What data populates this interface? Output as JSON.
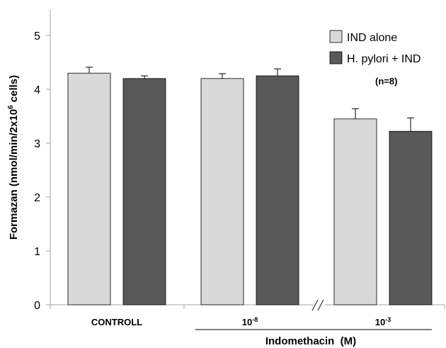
{
  "chart_data": {
    "type": "bar",
    "categories": [
      "CONTROLL",
      "10-8",
      "10-3"
    ],
    "category_labels": [
      {
        "base": "CONTROLL",
        "sup": ""
      },
      {
        "base": "10",
        "sup": "-8"
      },
      {
        "base": "10",
        "sup": "-3"
      }
    ],
    "series": [
      {
        "name": "IND alone",
        "color": "#d9d9d9",
        "values": [
          4.3,
          4.2,
          3.45
        ],
        "errors": [
          0.11,
          0.09,
          0.19
        ]
      },
      {
        "name": "H. pylori + IND",
        "color": "#595959",
        "values": [
          4.2,
          4.25,
          3.22
        ],
        "errors": [
          0.05,
          0.13,
          0.25
        ]
      }
    ],
    "ylabel": {
      "pre": "Formazan (nmol/min/2x10",
      "sup": "6",
      "post": " cells)"
    },
    "xlabel": "Indomethacin  (M)",
    "annotation": "(n=8)",
    "ylim": [
      0,
      5
    ],
    "yticks": [
      0,
      1,
      2,
      3,
      4,
      5
    ],
    "legend_position": "top-right",
    "axis_break": "between 10-8 and 10-3",
    "grid": false
  }
}
